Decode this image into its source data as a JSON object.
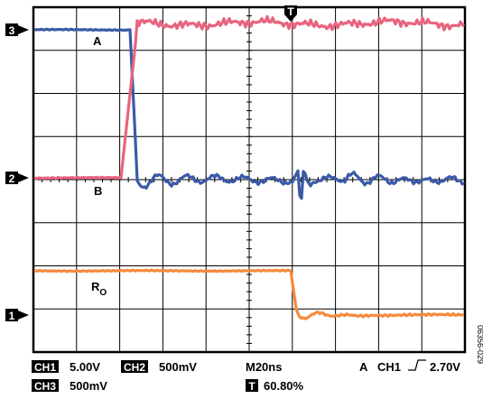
{
  "channel_markers": [
    "3",
    "2",
    "1"
  ],
  "trigger_marker": "T",
  "traces": {
    "a": "A",
    "b": "B",
    "ro": {
      "main": "R",
      "sub": "O"
    }
  },
  "status": {
    "ch1": {
      "label": "CH1",
      "value": "5.00V"
    },
    "ch2": {
      "label": "CH2",
      "value": "500mV"
    },
    "timebase": "M20ns",
    "trigger": {
      "mode": "A",
      "source": "CH1",
      "level": "2.70V"
    },
    "ch3": {
      "label": "CH3",
      "value": "500mV"
    },
    "trigger_position": {
      "label": "T",
      "value": "60.80%"
    }
  },
  "figure_id": "06356-029"
}
